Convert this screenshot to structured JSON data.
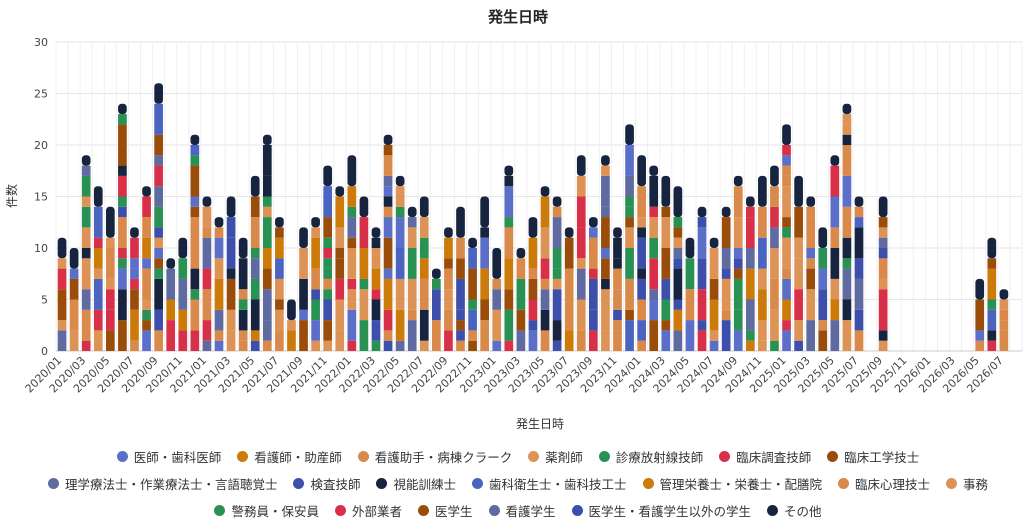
{
  "chart_data": {
    "type": "bar",
    "stacked": true,
    "title": "発生日時",
    "xlabel": "発生日時",
    "ylabel": "件数",
    "ylim": [
      0,
      30
    ],
    "yticks": [
      0,
      5,
      10,
      15,
      20,
      25,
      30
    ],
    "grid": true,
    "legend_position": "bottom",
    "start": "2020-01",
    "tick_labels": [
      "2020/01",
      "2020/03",
      "2020/05",
      "2020/07",
      "2020/09",
      "2020/11",
      "2021/01",
      "2021/03",
      "2021/05",
      "2021/07",
      "2021/09",
      "2021/11",
      "2022/01",
      "2022/03",
      "2022/05",
      "2022/07",
      "2022/09",
      "2022/11",
      "2023/01",
      "2023/03",
      "2023/05",
      "2023/07",
      "2023/09",
      "2023/11",
      "2024/01",
      "2024/03",
      "2024/05",
      "2024/07",
      "2024/09",
      "2024/11",
      "2025/01",
      "2025/03",
      "2025/05",
      "2025/07",
      "2025/09",
      "2025/11",
      "2026/01",
      "2026/03",
      "2026/05",
      "2026/07"
    ],
    "categories": [
      "2020/01",
      "2020/02",
      "2020/03",
      "2020/04",
      "2020/05",
      "2020/06",
      "2020/07",
      "2020/08",
      "2020/09",
      "2020/10",
      "2020/11",
      "2020/12",
      "2021/01",
      "2021/02",
      "2021/03",
      "2021/04",
      "2021/05",
      "2021/06",
      "2021/07",
      "2021/08",
      "2021/09",
      "2021/10",
      "2021/11",
      "2021/12",
      "2022/01",
      "2022/02",
      "2022/03",
      "2022/04",
      "2022/05",
      "2022/06",
      "2022/07",
      "2022/08",
      "2022/09",
      "2022/10",
      "2022/11",
      "2022/12",
      "2023/01",
      "2023/02",
      "2023/03",
      "2023/04",
      "2023/05",
      "2023/06",
      "2023/07",
      "2023/08",
      "2023/09",
      "2023/10",
      "2023/11",
      "2023/12",
      "2024/01",
      "2024/02",
      "2024/03",
      "2024/04",
      "2024/05",
      "2024/06",
      "2024/07",
      "2024/08",
      "2024/09",
      "2024/10",
      "2024/11",
      "2024/12",
      "2025/01",
      "2025/02",
      "2025/03",
      "2025/04",
      "2025/05",
      "2025/06",
      "2025/07",
      "2025/08",
      "2025/09",
      "2025/10",
      "2025/11",
      "2025/12",
      "2026/01",
      "2026/02",
      "2026/03",
      "2026/04",
      "2026/05",
      "2026/06",
      "2026/07",
      "2026/08"
    ],
    "totals": [
      11,
      10,
      19,
      16,
      14,
      24,
      12,
      16,
      26,
      9,
      11,
      21,
      15,
      13,
      15,
      11,
      17,
      21,
      13,
      5,
      12,
      13,
      18,
      16,
      19,
      15,
      12,
      21,
      17,
      14,
      15,
      8,
      12,
      14,
      11,
      15,
      10,
      18,
      10,
      13,
      16,
      15,
      12,
      19,
      13,
      19,
      12,
      22,
      19,
      18,
      17,
      16,
      11,
      14,
      11,
      14,
      17,
      15,
      17,
      18,
      22,
      17,
      15,
      12,
      19,
      24,
      15,
      0,
      15,
      0,
      0,
      0,
      0,
      0,
      0,
      0,
      7,
      11,
      6,
      0
    ],
    "series": [
      {
        "name": "医師・歯科医師",
        "color": "#5b6fc9"
      },
      {
        "name": "看護師・助産師",
        "color": "#cc7a0a"
      },
      {
        "name": "看護助手・病棟クラーク",
        "color": "#d9894a"
      },
      {
        "name": "薬剤師",
        "color": "#dc9355"
      },
      {
        "name": "診療放射線技師",
        "color": "#2a9155"
      },
      {
        "name": "臨床調査技師",
        "color": "#d9304a"
      },
      {
        "name": "臨床工学技士",
        "color": "#9a4d0a"
      },
      {
        "name": "理学療法士・作業療法士・言語聴覚士",
        "color": "#5e6aa0"
      },
      {
        "name": "検査技師",
        "color": "#3d4fab"
      },
      {
        "name": "視能訓練士",
        "color": "#172440"
      },
      {
        "name": "歯科衛生士・歯科技工士",
        "color": "#4a64c0"
      },
      {
        "name": "管理栄養士・栄養士・配膳院",
        "color": "#cc7a0a"
      },
      {
        "name": "臨床心理技士",
        "color": "#d9894a"
      },
      {
        "name": "事務",
        "color": "#dc9355"
      },
      {
        "name": "警務員・保安員",
        "color": "#2a9155"
      },
      {
        "name": "外部業者",
        "color": "#d9304a"
      },
      {
        "name": "医学生",
        "color": "#9a4d0a"
      },
      {
        "name": "看護学生",
        "color": "#5e6aa0"
      },
      {
        "name": "医学生・看護学生以外の学生",
        "color": "#3d4fab"
      },
      {
        "name": "その他",
        "color": "#172440"
      }
    ]
  }
}
